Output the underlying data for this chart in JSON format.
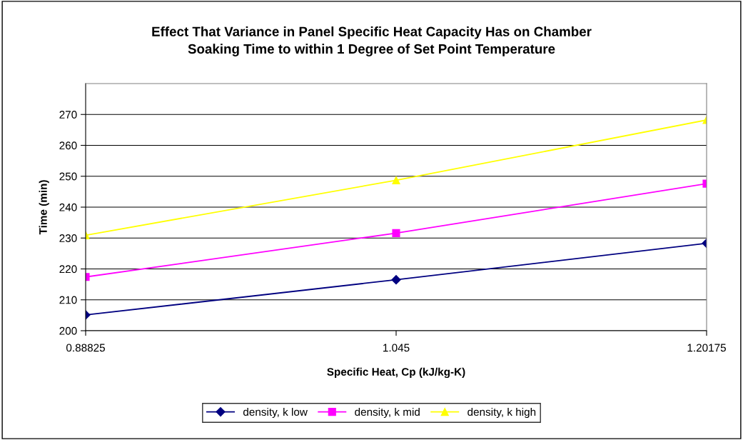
{
  "chart_data": {
    "type": "line",
    "title": "Effect That Variance in Panel Specific Heat Capacity Has on Chamber\nSoaking Time to within 1 Degree of Set Point Temperature",
    "xlabel": "Specific Heat, Cp (kJ/kg-K)",
    "ylabel": "Time (min)",
    "categories": [
      "0.88825",
      "1.045",
      "1.20175"
    ],
    "series": [
      {
        "name": "density, k low",
        "color": "#000080",
        "marker": "diamond",
        "values": [
          205.1,
          216.5,
          228.3
        ]
      },
      {
        "name": "density, k mid",
        "color": "#ff00ff",
        "marker": "square",
        "values": [
          217.4,
          231.6,
          247.6
        ]
      },
      {
        "name": "density, k high",
        "color": "#ffff00",
        "marker": "triangle",
        "values": [
          230.9,
          248.7,
          268.2
        ]
      }
    ],
    "ylim": [
      200,
      280
    ],
    "yticks": [
      200,
      210,
      220,
      230,
      240,
      250,
      260,
      270
    ],
    "grid": "y",
    "legend": "bottom"
  }
}
